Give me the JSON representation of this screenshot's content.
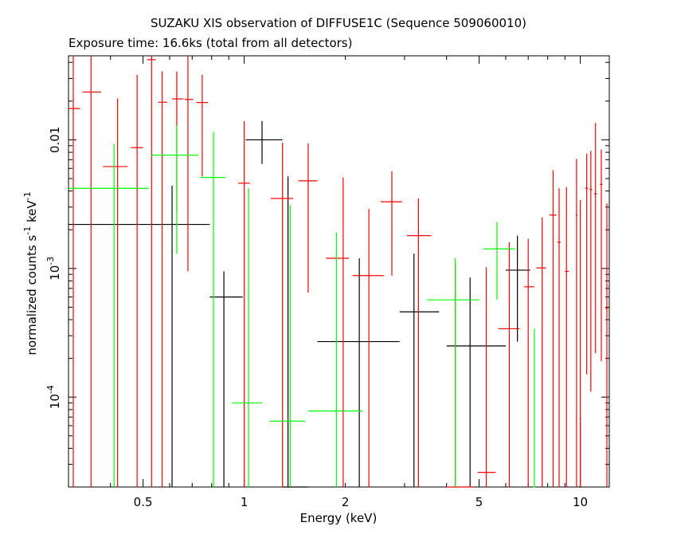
{
  "chart_data": {
    "type": "scatter",
    "title": "SUZAKU XIS observation of DIFFUSE1C (Sequence 509060010)",
    "subtitle": "Exposure time: 16.6ks (total from all detectors)",
    "xlabel": "Energy (keV)",
    "ylabel": "normalized counts s^-1 keV^-1",
    "xscale": "log",
    "yscale": "log",
    "xlim": [
      0.3,
      12.2
    ],
    "ylim": [
      2e-05,
      0.045
    ],
    "x_ticks": [
      "0.5",
      "1",
      "2",
      "5",
      "10"
    ],
    "y_ticks": [
      "10^-4",
      "10^-3",
      "0.01"
    ],
    "grid": false,
    "series": [
      {
        "color": "#000000",
        "points": [
          {
            "x": 0.61,
            "xerr": [
              0.3,
              0.79
            ],
            "y": 0.0022,
            "yerr": [
              2e-05,
              0.0044
            ]
          },
          {
            "x": 0.87,
            "xerr": [
              0.79,
              0.99
            ],
            "y": 0.0006,
            "yerr": [
              2e-05,
              0.00095
            ]
          },
          {
            "x": 1.13,
            "xerr": [
              1.01,
              1.3
            ],
            "y": 0.01,
            "yerr": [
              0.0065,
              0.014
            ]
          },
          {
            "x": 1.35,
            "xerr": [
              1.3,
              1.55
            ],
            "y": 2e-05,
            "yerr": [
              2e-05,
              0.0052
            ]
          },
          {
            "x": 2.2,
            "xerr": [
              1.65,
              2.9
            ],
            "y": 0.00027,
            "yerr": [
              2e-05,
              0.0012
            ]
          },
          {
            "x": 3.2,
            "xerr": [
              2.9,
              3.8
            ],
            "y": 0.00046,
            "yerr": [
              2e-05,
              0.0013
            ]
          },
          {
            "x": 4.7,
            "xerr": [
              4.0,
              6.0
            ],
            "y": 0.00025,
            "yerr": [
              2e-05,
              0.00085
            ]
          },
          {
            "x": 6.5,
            "xerr": [
              6.0,
              7.1
            ],
            "y": 0.00097,
            "yerr": [
              0.00027,
              0.0018
            ]
          },
          {
            "x": 10.0,
            "xerr": [
              9.9,
              10.1
            ],
            "y": 2e-05,
            "yerr": [
              2e-05,
              6.5e-05
            ]
          }
        ]
      },
      {
        "color": "#ff0000",
        "points": [
          {
            "x": 0.31,
            "xerr": [
              0.3,
              0.325
            ],
            "y": 0.0175,
            "yerr": [
              2e-05,
              0.045
            ]
          },
          {
            "x": 0.35,
            "xerr": [
              0.33,
              0.375
            ],
            "y": 0.0235,
            "yerr": [
              2e-05,
              0.045
            ]
          },
          {
            "x": 0.42,
            "xerr": [
              0.38,
              0.45
            ],
            "y": 0.0062,
            "yerr": [
              2e-05,
              0.021
            ]
          },
          {
            "x": 0.48,
            "xerr": [
              0.46,
              0.5
            ],
            "y": 0.0087,
            "yerr": [
              2e-05,
              0.032
            ]
          },
          {
            "x": 0.53,
            "xerr": [
              0.515,
              0.545
            ],
            "y": 0.042,
            "yerr": [
              2e-05,
              0.045
            ]
          },
          {
            "x": 0.57,
            "xerr": [
              0.555,
              0.59
            ],
            "y": 0.0196,
            "yerr": [
              2e-05,
              0.034
            ]
          },
          {
            "x": 0.63,
            "xerr": [
              0.61,
              0.66
            ],
            "y": 0.0208,
            "yerr": [
              0.0028,
              0.034
            ]
          },
          {
            "x": 0.68,
            "xerr": [
              0.665,
              0.705
            ],
            "y": 0.0206,
            "yerr": [
              0.00095,
              0.045
            ]
          },
          {
            "x": 0.75,
            "xerr": [
              0.72,
              0.78
            ],
            "y": 0.0195,
            "yerr": [
              0.0052,
              0.032
            ]
          },
          {
            "x": 1.0,
            "xerr": [
              0.96,
              1.04
            ],
            "y": 0.0046,
            "yerr": [
              2e-05,
              0.014
            ]
          },
          {
            "x": 1.3,
            "xerr": [
              1.2,
              1.4
            ],
            "y": 0.0035,
            "yerr": [
              2e-05,
              0.0095
            ]
          },
          {
            "x": 1.55,
            "xerr": [
              1.45,
              1.65
            ],
            "y": 0.0048,
            "yerr": [
              0.00065,
              0.0094
            ]
          },
          {
            "x": 1.97,
            "xerr": [
              1.75,
              2.05
            ],
            "y": 0.0012,
            "yerr": [
              2e-05,
              0.0051
            ]
          },
          {
            "x": 2.35,
            "xerr": [
              2.1,
              2.6
            ],
            "y": 0.00088,
            "yerr": [
              2e-05,
              0.0029
            ]
          },
          {
            "x": 2.75,
            "xerr": [
              2.55,
              2.95
            ],
            "y": 0.0033,
            "yerr": [
              0.00088,
              0.0057
            ]
          },
          {
            "x": 3.3,
            "xerr": [
              3.05,
              3.6
            ],
            "y": 0.0018,
            "yerr": [
              2e-05,
              0.0035
            ]
          },
          {
            "x": 4.25,
            "xerr": [
              4.0,
              4.8
            ],
            "y": 2e-05,
            "yerr": [
              2e-05,
              0.0011
            ]
          },
          {
            "x": 5.25,
            "xerr": [
              4.95,
              5.6
            ],
            "y": 2.6e-05,
            "yerr": [
              2e-05,
              0.00102
            ]
          },
          {
            "x": 6.15,
            "xerr": [
              5.7,
              6.6
            ],
            "y": 0.00034,
            "yerr": [
              2e-05,
              0.0016
            ]
          },
          {
            "x": 7.0,
            "xerr": [
              6.8,
              7.3
            ],
            "y": 0.00072,
            "yerr": [
              2e-05,
              0.0017
            ]
          },
          {
            "x": 7.7,
            "xerr": [
              7.4,
              7.9
            ],
            "y": 0.00101,
            "yerr": [
              2e-05,
              0.0025
            ]
          },
          {
            "x": 8.3,
            "xerr": [
              8.1,
              8.5
            ],
            "y": 0.0026,
            "yerr": [
              2e-05,
              0.0058
            ]
          },
          {
            "x": 8.65,
            "xerr": [
              8.55,
              8.75
            ],
            "y": 0.0016,
            "yerr": [
              2e-05,
              0.0042
            ]
          },
          {
            "x": 9.1,
            "xerr": [
              9.0,
              9.25
            ],
            "y": 0.00095,
            "yerr": [
              2e-05,
              0.0043
            ]
          },
          {
            "x": 9.75,
            "xerr": [
              9.7,
              9.8
            ],
            "y": 0.0026,
            "yerr": [
              2e-05,
              0.0071
            ]
          },
          {
            "x": 10.0,
            "xerr": [
              9.95,
              10.05
            ],
            "y": 6.8e-05,
            "yerr": [
              2e-05,
              0.0034
            ]
          },
          {
            "x": 10.45,
            "xerr": [
              10.35,
              10.55
            ],
            "y": 0.0042,
            "yerr": [
              0.00015,
              0.0078
            ]
          },
          {
            "x": 10.75,
            "xerr": [
              10.65,
              10.85
            ],
            "y": 0.0041,
            "yerr": [
              0.00011,
              0.0082
            ]
          },
          {
            "x": 11.1,
            "xerr": [
              11.0,
              11.2
            ],
            "y": 0.0038,
            "yerr": [
              0.00022,
              0.0135
            ]
          },
          {
            "x": 11.55,
            "xerr": [
              11.45,
              11.65
            ],
            "y": 0.0045,
            "yerr": [
              0.00019,
              0.0084
            ]
          },
          {
            "x": 12.0,
            "xerr": [
              11.9,
              12.1
            ],
            "y": 0.00049,
            "yerr": [
              2e-05,
              0.0032
            ]
          }
        ]
      },
      {
        "color": "#00ff00",
        "points": [
          {
            "x": 0.41,
            "xerr": [
              0.3,
              0.52
            ],
            "y": 0.0042,
            "yerr": [
              2e-05,
              0.0093
            ]
          },
          {
            "x": 0.63,
            "xerr": [
              0.53,
              0.73
            ],
            "y": 0.0076,
            "yerr": [
              0.0013,
              0.013
            ]
          },
          {
            "x": 0.81,
            "xerr": [
              0.74,
              0.88
            ],
            "y": 0.0051,
            "yerr": [
              2e-05,
              0.0115
            ]
          },
          {
            "x": 1.03,
            "xerr": [
              0.92,
              1.13
            ],
            "y": 9e-05,
            "yerr": [
              2e-05,
              0.0042
            ]
          },
          {
            "x": 1.37,
            "xerr": [
              1.19,
              1.52
            ],
            "y": 6.5e-05,
            "yerr": [
              2e-05,
              0.0031
            ]
          },
          {
            "x": 1.88,
            "xerr": [
              1.55,
              2.25
            ],
            "y": 7.8e-05,
            "yerr": [
              2e-05,
              0.0019
            ]
          },
          {
            "x": 4.25,
            "xerr": [
              3.5,
              5.0
            ],
            "y": 0.00057,
            "yerr": [
              2e-05,
              0.0012
            ]
          },
          {
            "x": 5.65,
            "xerr": [
              5.15,
              6.4
            ],
            "y": 0.00142,
            "yerr": [
              0.00057,
              0.0023
            ]
          },
          {
            "x": 7.3,
            "xerr": [
              7.25,
              7.35
            ],
            "y": 2e-05,
            "yerr": [
              2e-05,
              0.00034
            ]
          }
        ]
      }
    ]
  }
}
